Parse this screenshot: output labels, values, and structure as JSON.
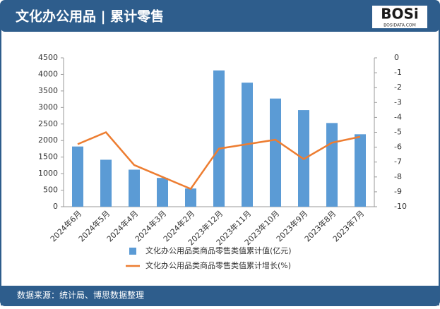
{
  "logo": {
    "name": "BOSi",
    "site": "BOSIDATA.COM"
  },
  "chart_data": {
    "type": "bar-line",
    "title": "文化办公用品 | 累计零售",
    "source": "数据来源：统计局、博思数据整理",
    "categories": [
      "2024年6月",
      "2024年5月",
      "2024年4月",
      "2024年3月",
      "2024年2月",
      "2023年12月",
      "2023年11月",
      "2023年10月",
      "2023年9月",
      "2023年8月",
      "2023年7月"
    ],
    "series": [
      {
        "name": "文化办公用品类商品零售类值累计值(亿元)",
        "type": "bar",
        "color": "#5b9bd5",
        "values": [
          1820,
          1420,
          1120,
          870,
          550,
          4120,
          3750,
          3270,
          2920,
          2530,
          2190
        ]
      },
      {
        "name": "文化办公用品类商品零售类值累计增长(%)",
        "type": "line",
        "axis": "y2",
        "color": "#ed7d31",
        "values": [
          -5.8,
          -5.0,
          -7.2,
          -8.0,
          -8.8,
          -6.1,
          -5.8,
          -5.5,
          -6.8,
          -5.7,
          -5.3
        ]
      }
    ],
    "ylim": [
      0,
      4500
    ],
    "yticks": [
      0,
      500,
      1000,
      1500,
      2000,
      2500,
      3000,
      3500,
      4000,
      4500
    ],
    "y2lim": [
      -10,
      0
    ],
    "y2ticks": [
      0,
      -1,
      -2,
      -3,
      -4,
      -5,
      -6,
      -7,
      -8,
      -9,
      -10
    ],
    "legend": "bottom"
  }
}
